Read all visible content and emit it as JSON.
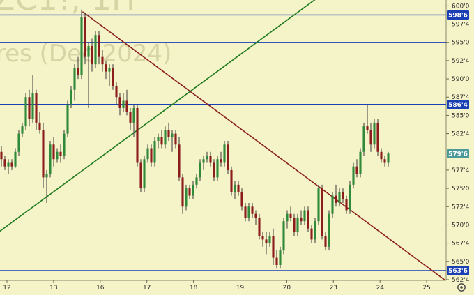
{
  "watermark": {
    "symbol": "ZC1!, 1H",
    "subtitle": "res (Dec 2024)"
  },
  "settings_icon": "gear-icon",
  "colors": {
    "background": "#f5f3c8",
    "up_candle": "#2f8a3b",
    "down_candle": "#8c1d1d",
    "wick": "#3a3a3a",
    "hline": "#1a3fb5",
    "trend_up": "#1e7a1e",
    "trend_down": "#8b2020",
    "price_badge": "#1a3fb5",
    "last_badge": "#4a9a9a"
  },
  "chart_data": {
    "type": "candlestick",
    "y_axis": {
      "ylim": [
        562.4,
        600.8
      ],
      "ticks": [
        "600'0",
        "597'4",
        "595'0",
        "592'4",
        "590'0",
        "587'4",
        "585'0",
        "582'4",
        "577'4",
        "575'0",
        "572'4",
        "570'0",
        "567'4",
        "565'0",
        "562'4"
      ],
      "tick_values": [
        600,
        597.5,
        595,
        592.5,
        590,
        587.5,
        585,
        582.5,
        577.5,
        575,
        572.5,
        570,
        567.5,
        565,
        562.5
      ]
    },
    "x_axis": {
      "ticks": [
        "12",
        "13",
        "16",
        "17",
        "18",
        "19",
        "20",
        "23",
        "24",
        "25"
      ],
      "tick_positions": [
        0,
        1,
        2,
        3,
        4,
        5,
        6,
        7,
        8,
        9
      ]
    },
    "price_labels": [
      {
        "label": "598'6",
        "value": 598.75,
        "kind": "level"
      },
      {
        "label": "586'4",
        "value": 586.5,
        "kind": "level"
      },
      {
        "label": "579'6",
        "value": 579.75,
        "kind": "last"
      },
      {
        "label": "563'6",
        "value": 563.75,
        "kind": "level"
      }
    ],
    "horizontal_lines": [
      598.75,
      595.0,
      586.5,
      563.75
    ],
    "trendlines": [
      {
        "from": [
          -0.18,
          569.0
        ],
        "to": [
          6.85,
          602.0
        ],
        "color": "trend_up"
      },
      {
        "from": [
          1.62,
          599.2
        ],
        "to": [
          9.4,
          562.4
        ],
        "color": "trend_down"
      }
    ],
    "candles": [
      [
        580.0,
        580.8,
        578.0,
        579.0
      ],
      [
        579.0,
        579.5,
        577.5,
        578.0
      ],
      [
        578.0,
        579.0,
        577.0,
        578.5
      ],
      [
        578.5,
        579.0,
        577.5,
        578.0
      ],
      [
        578.0,
        580.5,
        577.8,
        580.0
      ],
      [
        580.0,
        583.0,
        579.5,
        582.5
      ],
      [
        582.5,
        584.0,
        582.0,
        583.5
      ],
      [
        583.5,
        588.0,
        583.0,
        587.5
      ],
      [
        587.5,
        588.5,
        583.5,
        584.5
      ],
      [
        584.5,
        590.5,
        584.0,
        588.0
      ],
      [
        588.0,
        588.5,
        583.0,
        584.0
      ],
      [
        584.0,
        585.5,
        582.5,
        583.0
      ],
      [
        583.0,
        584.0,
        575.0,
        576.5
      ],
      [
        576.5,
        577.5,
        573.0,
        577.0
      ],
      [
        577.0,
        581.5,
        576.5,
        581.0
      ],
      [
        581.0,
        582.0,
        578.0,
        579.0
      ],
      [
        579.0,
        580.5,
        578.5,
        580.0
      ],
      [
        580.0,
        581.0,
        578.5,
        579.5
      ],
      [
        579.5,
        583.0,
        579.0,
        582.5
      ],
      [
        582.5,
        587.0,
        582.0,
        586.5
      ],
      [
        586.5,
        589.0,
        586.0,
        588.5
      ],
      [
        588.5,
        592.0,
        587.0,
        591.5
      ],
      [
        591.5,
        593.0,
        590.0,
        590.5
      ],
      [
        590.5,
        599.5,
        590.0,
        598.5
      ],
      [
        598.5,
        599.0,
        592.0,
        593.0
      ],
      [
        593.0,
        595.0,
        586.0,
        594.5
      ],
      [
        594.5,
        595.5,
        591.0,
        592.0
      ],
      [
        592.0,
        596.5,
        591.5,
        596.0
      ],
      [
        596.0,
        596.5,
        592.0,
        593.0
      ],
      [
        593.0,
        594.0,
        591.0,
        592.0
      ],
      [
        592.0,
        592.5,
        590.0,
        591.0
      ],
      [
        591.0,
        592.0,
        589.0,
        591.5
      ],
      [
        591.5,
        592.0,
        588.5,
        589.0
      ],
      [
        589.0,
        589.5,
        586.5,
        587.5
      ],
      [
        587.5,
        588.0,
        585.0,
        586.0
      ],
      [
        586.0,
        588.0,
        585.5,
        587.0
      ],
      [
        587.0,
        588.5,
        585.0,
        585.5
      ],
      [
        585.5,
        586.0,
        583.0,
        584.0
      ],
      [
        584.0,
        586.5,
        582.0,
        586.0
      ],
      [
        586.0,
        586.5,
        578.0,
        578.5
      ],
      [
        578.5,
        579.0,
        574.5,
        575.0
      ],
      [
        575.0,
        579.5,
        574.5,
        579.0
      ],
      [
        579.0,
        581.0,
        578.5,
        580.5
      ],
      [
        580.5,
        581.0,
        578.0,
        578.5
      ],
      [
        578.5,
        582.0,
        578.0,
        581.5
      ],
      [
        581.5,
        582.5,
        580.5,
        582.0
      ],
      [
        582.0,
        583.0,
        580.5,
        581.0
      ],
      [
        581.0,
        583.5,
        580.5,
        583.0
      ],
      [
        583.0,
        584.0,
        581.5,
        582.0
      ],
      [
        582.0,
        583.0,
        580.0,
        582.5
      ],
      [
        582.5,
        583.0,
        580.5,
        581.0
      ],
      [
        581.0,
        582.0,
        576.0,
        576.5
      ],
      [
        576.5,
        577.0,
        571.5,
        572.5
      ],
      [
        572.5,
        575.5,
        572.0,
        575.0
      ],
      [
        575.0,
        575.5,
        573.5,
        574.0
      ],
      [
        574.0,
        576.0,
        573.5,
        575.5
      ],
      [
        575.5,
        577.0,
        575.0,
        576.5
      ],
      [
        576.5,
        579.0,
        576.0,
        578.5
      ],
      [
        578.5,
        579.5,
        577.5,
        579.0
      ],
      [
        579.0,
        580.0,
        578.5,
        579.5
      ],
      [
        579.5,
        580.0,
        578.0,
        578.5
      ],
      [
        578.5,
        579.0,
        576.0,
        576.5
      ],
      [
        576.5,
        579.5,
        576.0,
        579.0
      ],
      [
        579.0,
        580.0,
        578.0,
        578.5
      ],
      [
        578.5,
        581.5,
        578.0,
        581.0
      ],
      [
        581.0,
        581.5,
        577.0,
        577.5
      ],
      [
        577.5,
        578.0,
        574.0,
        574.5
      ],
      [
        574.5,
        576.0,
        573.5,
        575.5
      ],
      [
        575.5,
        576.0,
        574.0,
        574.5
      ],
      [
        574.5,
        575.0,
        572.0,
        572.5
      ],
      [
        572.5,
        573.0,
        570.5,
        571.0
      ],
      [
        571.0,
        573.0,
        570.5,
        572.5
      ],
      [
        572.5,
        573.0,
        571.0,
        571.5
      ],
      [
        571.5,
        572.0,
        570.0,
        571.0
      ],
      [
        571.0,
        571.5,
        568.0,
        568.5
      ],
      [
        568.5,
        569.0,
        567.0,
        568.0
      ],
      [
        568.0,
        569.0,
        566.0,
        567.5
      ],
      [
        567.5,
        569.0,
        567.0,
        568.5
      ],
      [
        568.5,
        569.5,
        564.5,
        565.5
      ],
      [
        565.5,
        566.5,
        564.0,
        564.5
      ],
      [
        564.5,
        567.0,
        564.0,
        566.5
      ],
      [
        566.5,
        571.0,
        566.0,
        570.5
      ],
      [
        570.5,
        572.0,
        569.5,
        571.5
      ],
      [
        571.5,
        572.5,
        570.5,
        571.0
      ],
      [
        571.0,
        571.5,
        568.5,
        569.0
      ],
      [
        569.0,
        571.5,
        568.5,
        571.0
      ],
      [
        571.0,
        572.0,
        570.0,
        570.5
      ],
      [
        570.5,
        572.5,
        570.0,
        572.0
      ],
      [
        572.0,
        572.5,
        569.0,
        569.5
      ],
      [
        569.5,
        570.0,
        567.5,
        568.0
      ],
      [
        568.0,
        571.0,
        567.5,
        570.5
      ],
      [
        570.5,
        575.5,
        570.0,
        575.0
      ],
      [
        575.0,
        575.5,
        568.0,
        568.5
      ],
      [
        568.5,
        569.0,
        566.5,
        567.0
      ],
      [
        567.0,
        572.0,
        566.5,
        571.5
      ],
      [
        571.5,
        574.5,
        571.0,
        574.0
      ],
      [
        574.0,
        575.5,
        572.5,
        573.0
      ],
      [
        573.0,
        575.0,
        572.5,
        574.5
      ],
      [
        574.5,
        575.0,
        573.0,
        573.5
      ],
      [
        573.5,
        574.0,
        571.5,
        572.0
      ],
      [
        572.0,
        576.0,
        571.5,
        575.5
      ],
      [
        575.5,
        578.5,
        575.0,
        578.0
      ],
      [
        578.0,
        579.0,
        576.5,
        577.0
      ],
      [
        577.0,
        580.5,
        576.5,
        580.0
      ],
      [
        580.0,
        584.0,
        579.5,
        583.5
      ],
      [
        583.5,
        586.5,
        582.5,
        583.0
      ],
      [
        583.0,
        584.0,
        580.0,
        581.0
      ],
      [
        581.0,
        584.5,
        580.5,
        584.0
      ],
      [
        584.0,
        584.5,
        579.5,
        580.0
      ],
      [
        580.0,
        580.5,
        578.5,
        579.0
      ],
      [
        579.0,
        579.5,
        578.0,
        578.5
      ],
      [
        578.5,
        580.0,
        578.0,
        579.75
      ]
    ]
  }
}
